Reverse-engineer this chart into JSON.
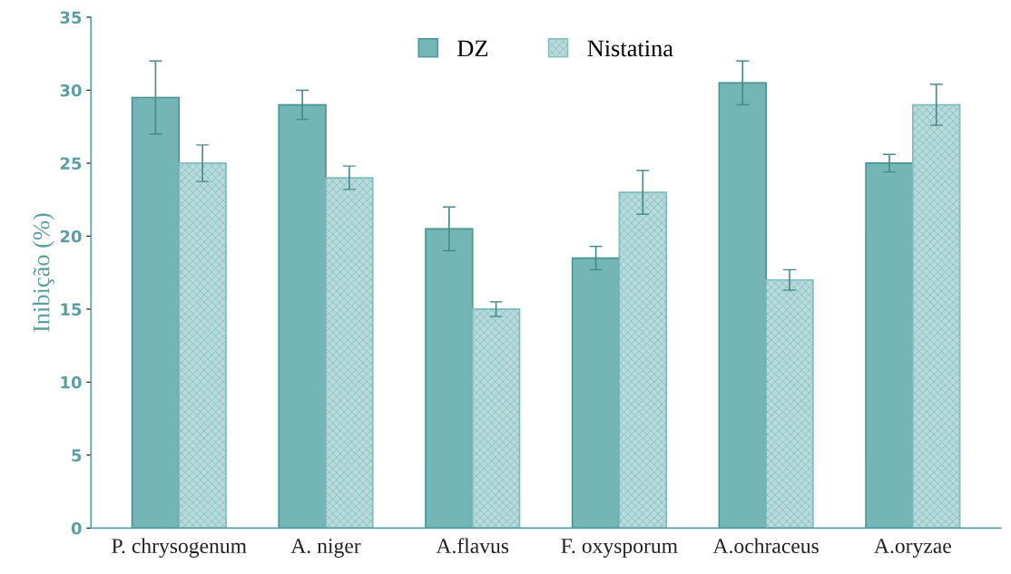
{
  "chart_data": {
    "type": "bar",
    "ylabel": "Inibição (%)",
    "categories": [
      "P. chrysogenum",
      "A. niger",
      "A.flavus",
      "F. oxysporum",
      "A.ochraceus",
      "A.oryzae"
    ],
    "series": [
      {
        "name": "DZ",
        "color": "#74b6b6",
        "values": [
          29.5,
          29,
          20.5,
          18.5,
          30.5,
          25
        ],
        "errors": [
          2.5,
          1,
          1.5,
          0.8,
          1.5,
          0.6
        ]
      },
      {
        "name": "Nistatina",
        "color": "#7fbcbc",
        "values": [
          25,
          24,
          15,
          23,
          17,
          29
        ],
        "errors": [
          1.25,
          0.8,
          0.5,
          1.5,
          0.7,
          1.4
        ]
      }
    ],
    "ylim": [
      0,
      35
    ],
    "yticks": [
      0,
      5,
      10,
      15,
      20,
      25,
      30,
      35
    ],
    "grid": false,
    "legend": "top"
  }
}
